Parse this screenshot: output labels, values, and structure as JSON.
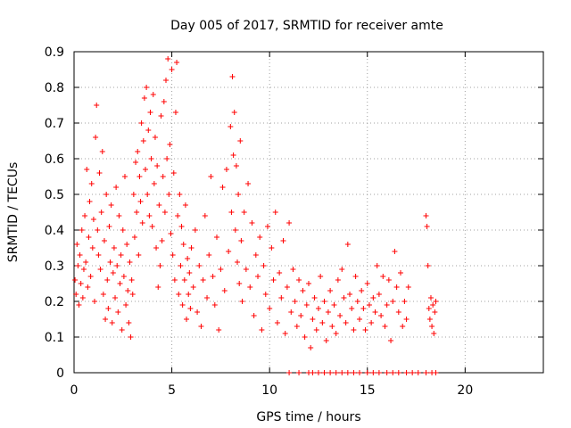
{
  "chart_data": {
    "type": "scatter",
    "title": "Day 005 of 2017, SRMTID for receiver amte",
    "xlabel": "GPS time / hours",
    "ylabel": "SRMTID / TECUs",
    "xlim": [
      0,
      24
    ],
    "ylim": [
      0,
      0.9
    ],
    "x_ticks": [
      0,
      5,
      10,
      15,
      20
    ],
    "y_ticks": [
      0,
      0.1,
      0.2,
      0.3,
      0.4,
      0.5,
      0.6,
      0.7,
      0.8,
      0.9
    ],
    "x_tick_labels": [
      "0",
      "5",
      "10",
      "15",
      "20"
    ],
    "y_tick_labels": [
      "0",
      "0.1",
      "0.2",
      "0.3",
      "0.4",
      "0.5",
      "0.6",
      "0.7",
      "0.8",
      "0.9"
    ],
    "grid": true,
    "marker": "plus",
    "marker_color": "#ff0000",
    "series": [
      {
        "name": "SRMTID",
        "points": [
          [
            0.05,
            0.26
          ],
          [
            0.1,
            0.22
          ],
          [
            0.15,
            0.36
          ],
          [
            0.2,
            0.3
          ],
          [
            0.25,
            0.19
          ],
          [
            0.3,
            0.33
          ],
          [
            0.35,
            0.25
          ],
          [
            0.4,
            0.4
          ],
          [
            0.45,
            0.21
          ],
          [
            0.5,
            0.29
          ],
          [
            0.55,
            0.44
          ],
          [
            0.6,
            0.31
          ],
          [
            0.65,
            0.57
          ],
          [
            0.7,
            0.24
          ],
          [
            0.75,
            0.38
          ],
          [
            0.8,
            0.48
          ],
          [
            0.85,
            0.27
          ],
          [
            0.9,
            0.53
          ],
          [
            0.95,
            0.35
          ],
          [
            1.0,
            0.43
          ],
          [
            1.05,
            0.2
          ],
          [
            1.1,
            0.66
          ],
          [
            1.15,
            0.75
          ],
          [
            1.2,
            0.4
          ],
          [
            1.25,
            0.33
          ],
          [
            1.3,
            0.56
          ],
          [
            1.35,
            0.29
          ],
          [
            1.4,
            0.45
          ],
          [
            1.45,
            0.62
          ],
          [
            1.5,
            0.22
          ],
          [
            1.55,
            0.37
          ],
          [
            1.6,
            0.15
          ],
          [
            1.65,
            0.5
          ],
          [
            1.7,
            0.26
          ],
          [
            1.75,
            0.18
          ],
          [
            1.8,
            0.41
          ],
          [
            1.85,
            0.31
          ],
          [
            1.9,
            0.47
          ],
          [
            1.95,
            0.14
          ],
          [
            2.0,
            0.28
          ],
          [
            2.05,
            0.35
          ],
          [
            2.1,
            0.21
          ],
          [
            2.15,
            0.52
          ],
          [
            2.2,
            0.3
          ],
          [
            2.25,
            0.17
          ],
          [
            2.3,
            0.44
          ],
          [
            2.35,
            0.25
          ],
          [
            2.4,
            0.33
          ],
          [
            2.45,
            0.12
          ],
          [
            2.5,
            0.4
          ],
          [
            2.55,
            0.27
          ],
          [
            2.6,
            0.55
          ],
          [
            2.65,
            0.19
          ],
          [
            2.7,
            0.36
          ],
          [
            2.75,
            0.23
          ],
          [
            2.8,
            0.14
          ],
          [
            2.85,
            0.31
          ],
          [
            2.9,
            0.1
          ],
          [
            2.95,
            0.26
          ],
          [
            3.0,
            0.22
          ],
          [
            3.05,
            0.5
          ],
          [
            3.1,
            0.38
          ],
          [
            3.15,
            0.59
          ],
          [
            3.2,
            0.45
          ],
          [
            3.25,
            0.62
          ],
          [
            3.3,
            0.33
          ],
          [
            3.35,
            0.55
          ],
          [
            3.4,
            0.48
          ],
          [
            3.45,
            0.7
          ],
          [
            3.5,
            0.42
          ],
          [
            3.55,
            0.65
          ],
          [
            3.6,
            0.77
          ],
          [
            3.65,
            0.57
          ],
          [
            3.7,
            0.8
          ],
          [
            3.75,
            0.5
          ],
          [
            3.8,
            0.68
          ],
          [
            3.85,
            0.44
          ],
          [
            3.9,
            0.73
          ],
          [
            3.95,
            0.6
          ],
          [
            4.0,
            0.41
          ],
          [
            4.05,
            0.78
          ],
          [
            4.1,
            0.53
          ],
          [
            4.15,
            0.66
          ],
          [
            4.2,
            0.35
          ],
          [
            4.25,
            0.58
          ],
          [
            4.3,
            0.24
          ],
          [
            4.35,
            0.47
          ],
          [
            4.4,
            0.3
          ],
          [
            4.45,
            0.72
          ],
          [
            4.5,
            0.37
          ],
          [
            4.55,
            0.55
          ],
          [
            4.6,
            0.76
          ],
          [
            4.65,
            0.45
          ],
          [
            4.7,
            0.82
          ],
          [
            4.75,
            0.6
          ],
          [
            4.8,
            0.88
          ],
          [
            4.85,
            0.5
          ],
          [
            4.9,
            0.64
          ],
          [
            4.95,
            0.39
          ],
          [
            5.0,
            0.85
          ],
          [
            5.05,
            0.33
          ],
          [
            5.1,
            0.56
          ],
          [
            5.15,
            0.26
          ],
          [
            5.2,
            0.73
          ],
          [
            5.25,
            0.87
          ],
          [
            5.3,
            0.44
          ],
          [
            5.35,
            0.22
          ],
          [
            5.4,
            0.5
          ],
          [
            5.45,
            0.3
          ],
          [
            5.5,
            0.41
          ],
          [
            5.55,
            0.19
          ],
          [
            5.6,
            0.36
          ],
          [
            5.65,
            0.26
          ],
          [
            5.7,
            0.47
          ],
          [
            5.75,
            0.15
          ],
          [
            5.8,
            0.32
          ],
          [
            5.85,
            0.22
          ],
          [
            5.9,
            0.28
          ],
          [
            5.95,
            0.18
          ],
          [
            6.0,
            0.35
          ],
          [
            6.1,
            0.24
          ],
          [
            6.2,
            0.4
          ],
          [
            6.3,
            0.17
          ],
          [
            6.4,
            0.3
          ],
          [
            6.5,
            0.13
          ],
          [
            6.6,
            0.26
          ],
          [
            6.7,
            0.44
          ],
          [
            6.8,
            0.21
          ],
          [
            6.9,
            0.33
          ],
          [
            7.0,
            0.55
          ],
          [
            7.1,
            0.27
          ],
          [
            7.2,
            0.19
          ],
          [
            7.3,
            0.38
          ],
          [
            7.4,
            0.12
          ],
          [
            7.5,
            0.29
          ],
          [
            7.6,
            0.52
          ],
          [
            7.7,
            0.23
          ],
          [
            7.8,
            0.57
          ],
          [
            7.9,
            0.34
          ],
          [
            8.0,
            0.69
          ],
          [
            8.05,
            0.45
          ],
          [
            8.1,
            0.83
          ],
          [
            8.15,
            0.61
          ],
          [
            8.2,
            0.73
          ],
          [
            8.25,
            0.4
          ],
          [
            8.3,
            0.58
          ],
          [
            8.35,
            0.31
          ],
          [
            8.4,
            0.5
          ],
          [
            8.45,
            0.25
          ],
          [
            8.5,
            0.65
          ],
          [
            8.55,
            0.37
          ],
          [
            8.6,
            0.2
          ],
          [
            8.7,
            0.45
          ],
          [
            8.8,
            0.29
          ],
          [
            8.9,
            0.53
          ],
          [
            9.0,
            0.24
          ],
          [
            9.1,
            0.42
          ],
          [
            9.2,
            0.16
          ],
          [
            9.3,
            0.33
          ],
          [
            9.4,
            0.27
          ],
          [
            9.5,
            0.38
          ],
          [
            9.6,
            0.12
          ],
          [
            9.7,
            0.3
          ],
          [
            9.8,
            0.22
          ],
          [
            9.9,
            0.41
          ],
          [
            10.0,
            0.18
          ],
          [
            10.1,
            0.35
          ],
          [
            10.2,
            0.26
          ],
          [
            10.3,
            0.45
          ],
          [
            10.4,
            0.14
          ],
          [
            10.5,
            0.28
          ],
          [
            10.6,
            0.21
          ],
          [
            10.7,
            0.37
          ],
          [
            10.8,
            0.11
          ],
          [
            10.9,
            0.24
          ],
          [
            11.0,
            0.42
          ],
          [
            11.1,
            0.17
          ],
          [
            11.2,
            0.29
          ],
          [
            11.3,
            0.2
          ],
          [
            11.4,
            0.13
          ],
          [
            11.5,
            0.26
          ],
          [
            11.6,
            0.16
          ],
          [
            11.7,
            0.23
          ],
          [
            11.8,
            0.1
          ],
          [
            11.9,
            0.19
          ],
          [
            12.0,
            0.25
          ],
          [
            12.1,
            0.07
          ],
          [
            12.2,
            0.15
          ],
          [
            12.3,
            0.21
          ],
          [
            12.4,
            0.12
          ],
          [
            12.5,
            0.18
          ],
          [
            12.6,
            0.27
          ],
          [
            12.7,
            0.14
          ],
          [
            12.8,
            0.2
          ],
          [
            12.9,
            0.09
          ],
          [
            13.0,
            0.17
          ],
          [
            13.1,
            0.23
          ],
          [
            13.2,
            0.13
          ],
          [
            13.3,
            0.19
          ],
          [
            13.4,
            0.11
          ],
          [
            13.5,
            0.26
          ],
          [
            13.6,
            0.16
          ],
          [
            13.7,
            0.29
          ],
          [
            13.8,
            0.21
          ],
          [
            13.9,
            0.14
          ],
          [
            14.0,
            0.36
          ],
          [
            14.1,
            0.22
          ],
          [
            14.2,
            0.18
          ],
          [
            14.3,
            0.12
          ],
          [
            14.4,
            0.27
          ],
          [
            14.5,
            0.2
          ],
          [
            14.6,
            0.15
          ],
          [
            14.7,
            0.23
          ],
          [
            14.8,
            0.18
          ],
          [
            14.9,
            0.12
          ],
          [
            15.0,
            0.25
          ],
          [
            15.1,
            0.19
          ],
          [
            15.2,
            0.14
          ],
          [
            15.3,
            0.21
          ],
          [
            15.4,
            0.17
          ],
          [
            15.5,
            0.3
          ],
          [
            15.6,
            0.22
          ],
          [
            15.7,
            0.16
          ],
          [
            15.8,
            0.27
          ],
          [
            15.9,
            0.13
          ],
          [
            16.0,
            0.19
          ],
          [
            16.1,
            0.26
          ],
          [
            16.2,
            0.09
          ],
          [
            16.3,
            0.2
          ],
          [
            16.4,
            0.34
          ],
          [
            16.5,
            0.24
          ],
          [
            16.6,
            0.17
          ],
          [
            16.7,
            0.28
          ],
          [
            16.8,
            0.13
          ],
          [
            16.9,
            0.2
          ],
          [
            17.0,
            0.15
          ],
          [
            17.1,
            0.24
          ],
          [
            18.0,
            0.44
          ],
          [
            18.05,
            0.41
          ],
          [
            18.1,
            0.3
          ],
          [
            18.15,
            0.18
          ],
          [
            18.2,
            0.15
          ],
          [
            18.25,
            0.21
          ],
          [
            18.3,
            0.13
          ],
          [
            18.35,
            0.19
          ],
          [
            18.4,
            0.11
          ],
          [
            18.45,
            0.17
          ],
          [
            18.5,
            0.2
          ],
          [
            11.0,
            0
          ],
          [
            11.5,
            0
          ],
          [
            12.0,
            0
          ],
          [
            12.2,
            0
          ],
          [
            12.5,
            0
          ],
          [
            12.8,
            0
          ],
          [
            13.1,
            0
          ],
          [
            13.4,
            0
          ],
          [
            13.7,
            0
          ],
          [
            14.0,
            0
          ],
          [
            14.3,
            0
          ],
          [
            14.6,
            0
          ],
          [
            15.0,
            0
          ],
          [
            15.3,
            0
          ],
          [
            15.6,
            0
          ],
          [
            16.0,
            0
          ],
          [
            16.3,
            0
          ],
          [
            16.6,
            0
          ],
          [
            17.0,
            0
          ],
          [
            17.3,
            0
          ],
          [
            17.6,
            0
          ],
          [
            18.0,
            0
          ],
          [
            18.3,
            0
          ],
          [
            18.5,
            0
          ]
        ]
      }
    ]
  }
}
